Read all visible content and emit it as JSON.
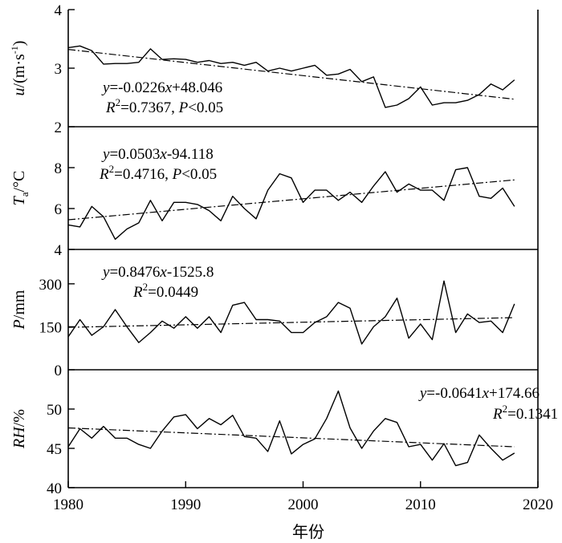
{
  "chart_data": {
    "type": "line",
    "xlabel": "年份",
    "xlim": [
      1980,
      2020
    ],
    "xticks": [
      "1980",
      "1990",
      "2000",
      "2010",
      "2020"
    ],
    "x": [
      1980,
      1981,
      1982,
      1983,
      1984,
      1985,
      1986,
      1987,
      1988,
      1989,
      1990,
      1991,
      1992,
      1993,
      1994,
      1995,
      1996,
      1997,
      1998,
      1999,
      2000,
      2001,
      2002,
      2003,
      2004,
      2005,
      2006,
      2007,
      2008,
      2009,
      2010,
      2011,
      2012,
      2013,
      2014,
      2015,
      2016,
      2017,
      2018
    ],
    "panels": [
      {
        "ylabel_main": "u",
        "ylabel_rest": "/(m·s",
        "ylabel_sup": "-1",
        "ylabel_close": ")",
        "ylim": [
          2,
          4
        ],
        "yticks": [
          2,
          3,
          4
        ],
        "values": [
          3.35,
          3.38,
          3.3,
          3.07,
          3.08,
          3.08,
          3.1,
          3.33,
          3.15,
          3.16,
          3.15,
          3.1,
          3.13,
          3.08,
          3.1,
          3.05,
          3.1,
          2.95,
          3.0,
          2.95,
          3.0,
          3.05,
          2.88,
          2.9,
          2.98,
          2.77,
          2.85,
          2.33,
          2.37,
          2.48,
          2.68,
          2.37,
          2.41,
          2.41,
          2.45,
          2.55,
          2.73,
          2.63,
          2.8
        ],
        "trend": {
          "start": 3.32,
          "end": 2.47
        },
        "eq_parts": [
          "y",
          "=-0.0226",
          "x",
          "+48.046"
        ],
        "r2_parts": [
          "R",
          "2",
          "=0.7367, ",
          "P",
          "<0.05"
        ]
      },
      {
        "ylabel_main": "T",
        "ylabel_sub": "a",
        "ylabel_rest": "/°C",
        "ylim": [
          4,
          10
        ],
        "yticks": [
          4,
          6,
          8
        ],
        "values": [
          5.2,
          5.1,
          6.1,
          5.6,
          4.5,
          5.0,
          5.3,
          6.4,
          5.4,
          6.3,
          6.3,
          6.2,
          5.9,
          5.4,
          6.6,
          6.0,
          5.5,
          6.9,
          7.7,
          7.5,
          6.3,
          6.9,
          6.9,
          6.4,
          6.8,
          6.3,
          7.1,
          7.8,
          6.8,
          7.2,
          6.9,
          6.9,
          6.4,
          7.9,
          8.0,
          6.6,
          6.5,
          7.0,
          6.1
        ],
        "trend": {
          "start": 5.45,
          "end": 7.4
        },
        "eq_parts": [
          "y",
          "=0.0503",
          "x",
          "-94.118"
        ],
        "r2_parts": [
          "R",
          "2",
          "=0.4716, ",
          "P",
          "<0.05"
        ]
      },
      {
        "ylabel_main": "P",
        "ylabel_rest": "/mm",
        "ylim": [
          0,
          420
        ],
        "yticks": [
          0,
          150,
          300
        ],
        "values": [
          115,
          175,
          120,
          150,
          210,
          150,
          95,
          130,
          170,
          145,
          185,
          145,
          185,
          130,
          225,
          235,
          175,
          175,
          170,
          130,
          130,
          165,
          185,
          235,
          215,
          90,
          150,
          185,
          250,
          110,
          160,
          105,
          310,
          130,
          195,
          165,
          170,
          130,
          230
        ],
        "trend": {
          "start": 148,
          "end": 182
        },
        "eq_parts": [
          "y",
          "=0.8476",
          "x",
          "-1525.8"
        ],
        "r2_parts": [
          "R",
          "2",
          "=0.0449"
        ]
      },
      {
        "ylabel_main": "RH",
        "ylabel_rest": "/%",
        "ylim": [
          40,
          55
        ],
        "yticks": [
          40,
          45,
          50
        ],
        "values": [
          45.2,
          47.5,
          46.3,
          47.8,
          46.3,
          46.3,
          45.5,
          45.0,
          47.2,
          49.0,
          49.3,
          47.5,
          48.8,
          48.0,
          49.2,
          46.5,
          46.3,
          44.6,
          48.5,
          44.3,
          45.5,
          46.2,
          48.8,
          52.3,
          47.6,
          45.0,
          47.2,
          48.8,
          48.3,
          45.2,
          45.5,
          43.5,
          45.6,
          42.8,
          43.2,
          46.7,
          45.0,
          43.5,
          44.4
        ],
        "trend": {
          "start": 47.6,
          "end": 45.2
        },
        "eq_parts": [
          "y",
          "=-0.0641",
          "x",
          "+174.66"
        ],
        "r2_parts": [
          "R",
          "2",
          "=0.1341"
        ]
      }
    ]
  }
}
